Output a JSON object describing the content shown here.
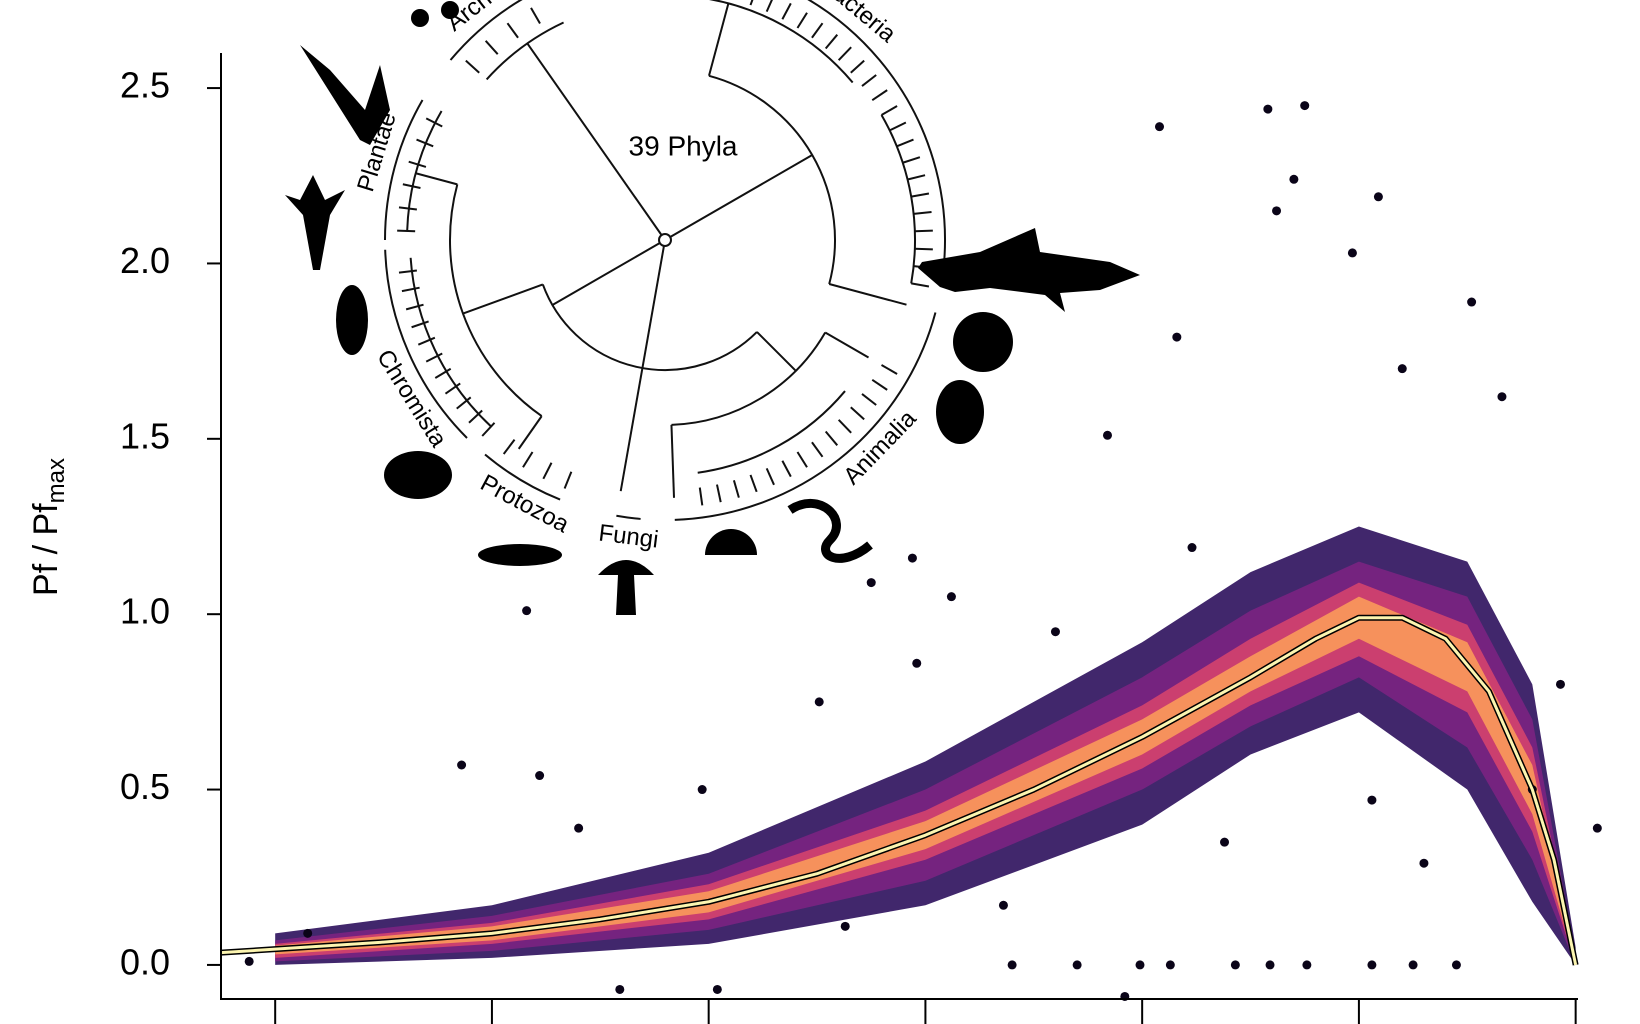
{
  "chart_data": {
    "type": "scatter",
    "y_label": "Pf / Pf",
    "y_label_sub": "max",
    "xlim": [
      -0.25,
      6.2
    ],
    "xticks": [
      0,
      1,
      2,
      3,
      4,
      5,
      6
    ],
    "ylim": [
      -0.1,
      2.6
    ],
    "yticks": [
      {
        "value": 0,
        "label": "0.0"
      },
      0.5,
      {
        "value": 1,
        "label": "1.0"
      },
      1.5,
      {
        "value": 2,
        "label": "2.0"
      },
      2.5
    ],
    "band_x": [
      0,
      1,
      2,
      3,
      4,
      4.5,
      5,
      5.5,
      5.8,
      6.0
    ],
    "density_bands": [
      {
        "color": "#2c105c",
        "lower": [
          0,
          0.02,
          0.06,
          0.17,
          0.4,
          0.6,
          0.72,
          0.5,
          0.18,
          0
        ],
        "upper": [
          0.09,
          0.17,
          0.32,
          0.58,
          0.92,
          1.12,
          1.25,
          1.15,
          0.8,
          0.05
        ]
      },
      {
        "color": "#7b2382",
        "lower": [
          0.01,
          0.04,
          0.1,
          0.24,
          0.5,
          0.68,
          0.82,
          0.62,
          0.3,
          0
        ],
        "upper": [
          0.07,
          0.14,
          0.26,
          0.5,
          0.82,
          1.01,
          1.15,
          1.05,
          0.7,
          0.03
        ]
      },
      {
        "color": "#d5436e",
        "lower": [
          0.02,
          0.06,
          0.13,
          0.3,
          0.56,
          0.74,
          0.88,
          0.72,
          0.38,
          0
        ],
        "upper": [
          0.06,
          0.12,
          0.23,
          0.44,
          0.74,
          0.93,
          1.09,
          0.97,
          0.62,
          0.02
        ]
      },
      {
        "color": "#fb9a5a",
        "lower": [
          0.03,
          0.07,
          0.15,
          0.33,
          0.6,
          0.78,
          0.93,
          0.78,
          0.43,
          0
        ],
        "upper": [
          0.055,
          0.11,
          0.21,
          0.41,
          0.7,
          0.88,
          1.05,
          0.92,
          0.57,
          0.01
        ]
      }
    ],
    "points": {
      "color": "#0a0418",
      "x": [
        4.58,
        4.75,
        4.08,
        4.7,
        5.09,
        4.62,
        4.97,
        5.52,
        4.16,
        5.66,
        3.84,
        2.94,
        2.75,
        3.12,
        2.96,
        2.51,
        1.16,
        0.86,
        1.22,
        1.97,
        1.4,
        6.1,
        5.93,
        5.8,
        1.59,
        3.92,
        2.04,
        0.15,
        -0.12,
        3.4,
        3.7,
        3.99,
        4.13,
        4.43,
        4.59,
        4.76,
        5.06,
        5.25,
        5.45,
        3.6,
        4.23,
        5.2,
        4.38,
        5.06,
        3.36,
        2.63,
        5.3
      ],
      "y": [
        2.44,
        2.45,
        2.39,
        2.24,
        2.19,
        2.15,
        2.03,
        1.89,
        1.79,
        1.62,
        1.51,
        1.16,
        1.09,
        1.05,
        0.86,
        0.75,
        1.01,
        0.57,
        0.54,
        0.5,
        0.39,
        0.39,
        0.8,
        0.5,
        -0.07,
        -0.09,
        -0.07,
        0.09,
        0.01,
        0,
        0,
        0,
        0,
        0,
        0,
        0,
        0,
        0,
        0,
        0.95,
        1.19,
        1.7,
        0.35,
        0.47,
        0.17,
        0.11,
        0.29
      ]
    },
    "fit": {
      "color": "#fcf5b0",
      "x": [
        -0.25,
        0,
        0.5,
        1,
        1.5,
        2,
        2.5,
        3,
        3.5,
        4,
        4.5,
        4.8,
        5,
        5.2,
        5.4,
        5.6,
        5.8,
        5.9,
        6.0
      ],
      "y": [
        0.035,
        0.045,
        0.065,
        0.09,
        0.13,
        0.18,
        0.26,
        0.37,
        0.5,
        0.65,
        0.82,
        0.93,
        0.99,
        0.99,
        0.93,
        0.78,
        0.5,
        0.3,
        0.0
      ]
    },
    "inset": {
      "title": "39 Phyla",
      "groups": [
        "Archea",
        "Bacteria",
        "Plantae",
        "Chromista",
        "Protozoa",
        "Fungi",
        "Animalia"
      ]
    }
  }
}
